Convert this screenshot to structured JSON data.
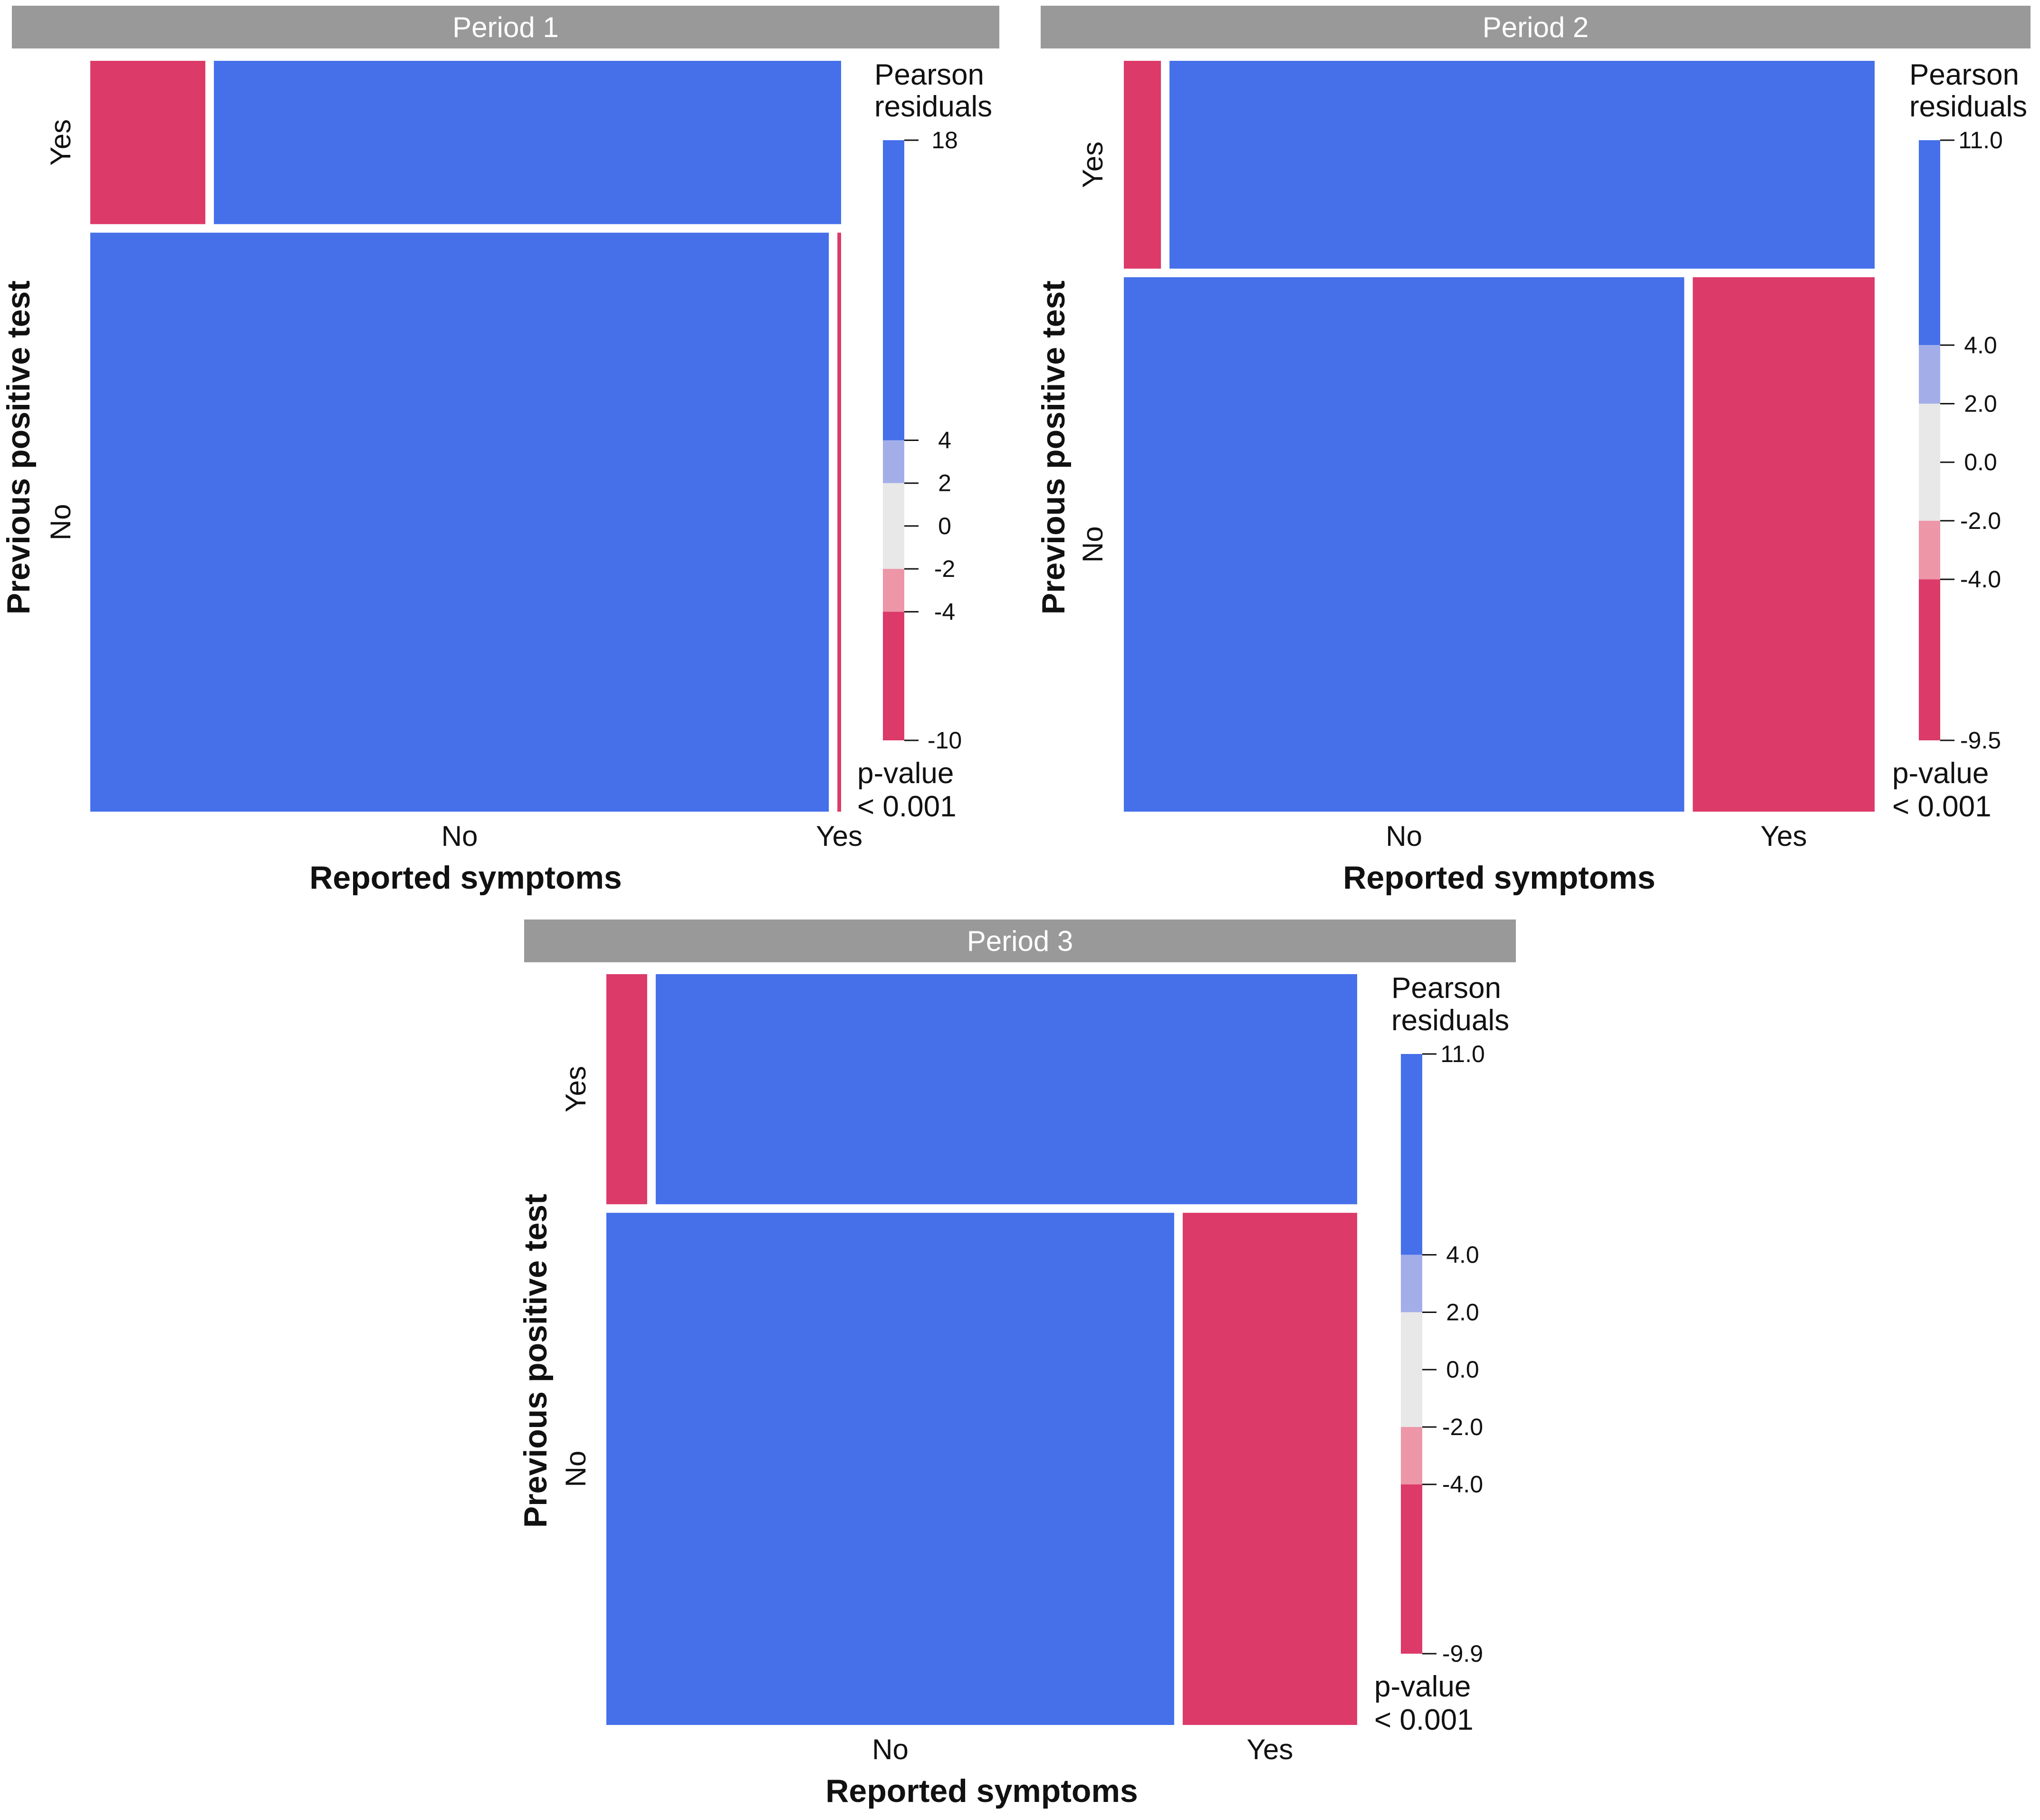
{
  "colors": {
    "strip_bg": "#999999",
    "strip_text": "#ffffff",
    "pos_strong": "#4570EA",
    "pos_weak": "#A3AEE9",
    "neutral": "#E8E8E8",
    "neg_weak": "#EC96A8",
    "neg_strong": "#DC3A69",
    "tile_gap": "#ffffff"
  },
  "chart_data": [
    {
      "type": "mosaic",
      "panel": "Period 1",
      "xlabel": "Reported symptoms",
      "ylabel": "Previous positive test",
      "x_levels": [
        "No",
        "Yes"
      ],
      "y_levels": [
        "Yes",
        "No"
      ],
      "row_proportions": {
        "Yes": 0.22,
        "No": 0.78
      },
      "column_proportions_within_row": {
        "Yes": {
          "Yes": 0.155,
          "No": 0.845
        },
        "No": {
          "No": 0.995,
          "Yes": 0.005
        }
      },
      "residual_shading": {
        "Yes|Yes": "neg_strong",
        "Yes|No": "pos_strong",
        "No|No": "pos_strong",
        "No|Yes": "neg_strong"
      },
      "legend": {
        "title": "Pearson residuals",
        "range": [
          -10,
          18
        ],
        "breaks": [
          18,
          4,
          2,
          0,
          -2,
          -4,
          -10
        ],
        "break_labels": [
          "18",
          "4",
          "2",
          "0",
          "-2",
          "-4",
          "-10"
        ]
      },
      "p_value_label": "p-value",
      "p_value": "< 0.001"
    },
    {
      "type": "mosaic",
      "panel": "Period 2",
      "xlabel": "Reported symptoms",
      "ylabel": "Previous positive test",
      "x_levels": [
        "No",
        "Yes"
      ],
      "y_levels": [
        "Yes",
        "No"
      ],
      "row_proportions": {
        "Yes": 0.28,
        "No": 0.72
      },
      "column_proportions_within_row": {
        "Yes": {
          "Yes": 0.05,
          "No": 0.95
        },
        "No": {
          "No": 0.755,
          "Yes": 0.245
        }
      },
      "residual_shading": {
        "Yes|Yes": "neg_strong",
        "Yes|No": "pos_strong",
        "No|No": "pos_strong",
        "No|Yes": "neg_strong"
      },
      "legend": {
        "title": "Pearson residuals",
        "range": [
          -9.5,
          11.0
        ],
        "breaks": [
          11.0,
          4.0,
          2.0,
          0.0,
          -2.0,
          -4.0,
          -9.5
        ],
        "break_labels": [
          "11.0",
          "4.0",
          "2.0",
          "0.0",
          "-2.0",
          "-4.0",
          "-9.5"
        ]
      },
      "p_value_label": "p-value",
      "p_value": "< 0.001"
    },
    {
      "type": "mosaic",
      "panel": "Period 3",
      "xlabel": "Reported symptoms",
      "ylabel": "Previous positive test",
      "x_levels": [
        "No",
        "Yes"
      ],
      "y_levels": [
        "Yes",
        "No"
      ],
      "row_proportions": {
        "Yes": 0.31,
        "No": 0.69
      },
      "column_proportions_within_row": {
        "Yes": {
          "Yes": 0.055,
          "No": 0.945
        },
        "No": {
          "No": 0.765,
          "Yes": 0.235
        }
      },
      "residual_shading": {
        "Yes|Yes": "neg_strong",
        "Yes|No": "pos_strong",
        "No|No": "pos_strong",
        "No|Yes": "neg_strong"
      },
      "legend": {
        "title": "Pearson residuals",
        "range": [
          -9.9,
          11.0
        ],
        "breaks": [
          11.0,
          4.0,
          2.0,
          0.0,
          -2.0,
          -4.0,
          -9.9
        ],
        "break_labels": [
          "11.0",
          "4.0",
          "2.0",
          "0.0",
          "-2.0",
          "-4.0",
          "-9.9"
        ]
      },
      "p_value_label": "p-value",
      "p_value": "< 0.001"
    }
  ]
}
